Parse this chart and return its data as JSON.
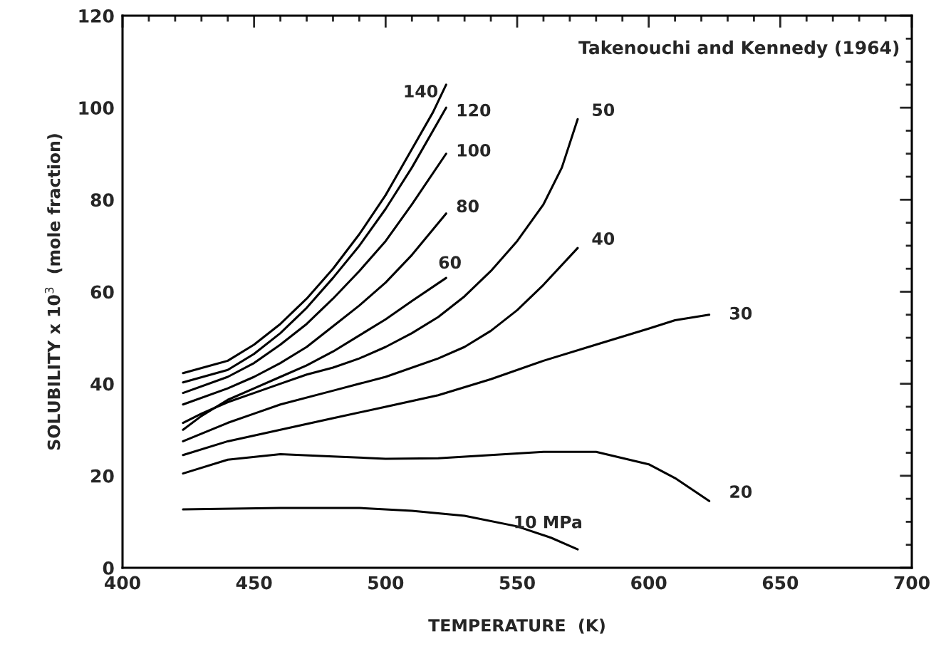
{
  "chart_data": {
    "type": "line",
    "xlabel": "TEMPERATURE  (K)",
    "ylabel": "SOLUBILITY x 10$^{3}$  (mole fraction)",
    "annotations": [
      "Takenouchi and Kennedy (1964)"
    ],
    "xlim": [
      400,
      700
    ],
    "ylim": [
      0,
      120
    ],
    "xticks": [
      400,
      {
        "value": 410,
        "label": null
      },
      {
        "value": 420,
        "label": null
      },
      {
        "value": 430,
        "label": null
      },
      {
        "value": 440,
        "label": null
      },
      450,
      {
        "value": 460,
        "label": null
      },
      {
        "value": 470,
        "label": null
      },
      {
        "value": 480,
        "label": null
      },
      {
        "value": 490,
        "label": null
      },
      500,
      {
        "value": 510,
        "label": null
      },
      {
        "value": 520,
        "label": null
      },
      {
        "value": 530,
        "label": null
      },
      {
        "value": 540,
        "label": null
      },
      550,
      {
        "value": 560,
        "label": null
      },
      {
        "value": 570,
        "label": null
      },
      {
        "value": 580,
        "label": null
      },
      {
        "value": 590,
        "label": null
      },
      600,
      {
        "value": 610,
        "label": null
      },
      {
        "value": 620,
        "label": null
      },
      {
        "value": 630,
        "label": null
      },
      {
        "value": 640,
        "label": null
      },
      650,
      {
        "value": 660,
        "label": null
      },
      {
        "value": 670,
        "label": null
      },
      {
        "value": 680,
        "label": null
      },
      {
        "value": 690,
        "label": null
      },
      700
    ],
    "yticks": [
      0,
      {
        "value": 5,
        "label": null
      },
      {
        "value": 10,
        "label": null
      },
      {
        "value": 15,
        "label": null
      },
      20,
      {
        "value": 25,
        "label": null
      },
      {
        "value": 30,
        "label": null
      },
      {
        "value": 35,
        "label": null
      },
      40,
      {
        "value": 45,
        "label": null
      },
      {
        "value": 50,
        "label": null
      },
      {
        "value": 55,
        "label": null
      },
      60,
      {
        "value": 65,
        "label": null
      },
      {
        "value": 70,
        "label": null
      },
      {
        "value": 75,
        "label": null
      },
      80,
      {
        "value": 85,
        "label": null
      },
      {
        "value": 90,
        "label": null
      },
      {
        "value": 95,
        "label": null
      },
      100,
      {
        "value": 105,
        "label": null
      },
      {
        "value": 110,
        "label": null
      },
      {
        "value": 115,
        "label": null
      },
      120
    ],
    "grid": false,
    "legend": false,
    "marker": "none",
    "line_style": "solid",
    "series": [
      {
        "name": "140",
        "color": "#000000",
        "x": [
          423,
          440,
          450,
          460,
          470,
          480,
          490,
          500,
          510,
          518,
          523
        ],
        "values": [
          42.3,
          45,
          48.5,
          53,
          58.5,
          65,
          72.5,
          81,
          91,
          99,
          105
        ]
      },
      {
        "name": "120",
        "color": "#000000",
        "x": [
          423,
          440,
          450,
          460,
          470,
          480,
          490,
          500,
          510,
          523
        ],
        "values": [
          40.3,
          43,
          46.5,
          51,
          56.5,
          63,
          70,
          78,
          87,
          100
        ]
      },
      {
        "name": "100",
        "color": "#000000",
        "x": [
          423,
          440,
          450,
          460,
          470,
          480,
          490,
          500,
          510,
          523
        ],
        "values": [
          38,
          41.5,
          44.5,
          48.5,
          53,
          58.5,
          64.5,
          71,
          79,
          90
        ]
      },
      {
        "name": "80",
        "color": "#000000",
        "x": [
          423,
          440,
          450,
          460,
          470,
          480,
          490,
          500,
          510,
          523
        ],
        "values": [
          35.5,
          39,
          41.5,
          44.5,
          48,
          52.5,
          57,
          62,
          68,
          77
        ]
      },
      {
        "name": "60",
        "color": "#000000",
        "x": [
          423,
          430,
          440,
          450,
          460,
          470,
          480,
          490,
          500,
          510,
          523
        ],
        "values": [
          30,
          33,
          36.5,
          39,
          41.5,
          44,
          47,
          50.5,
          54,
          58,
          63
        ]
      },
      {
        "name": "50",
        "color": "#000000",
        "x": [
          423,
          430,
          440,
          450,
          460,
          470,
          480,
          490,
          500,
          510,
          520,
          530,
          540,
          550,
          560,
          567,
          573
        ],
        "values": [
          31.5,
          33.5,
          36,
          38,
          40,
          42,
          43.5,
          45.5,
          48,
          51,
          54.5,
          59,
          64.5,
          71,
          79,
          87,
          97.5
        ]
      },
      {
        "name": "40",
        "color": "#000000",
        "x": [
          423,
          440,
          450,
          460,
          480,
          500,
          520,
          530,
          540,
          550,
          560,
          573
        ],
        "values": [
          27.5,
          31.5,
          33.5,
          35.5,
          38.5,
          41.5,
          45.5,
          48,
          51.5,
          56,
          61.5,
          69.5
        ]
      },
      {
        "name": "30",
        "color": "#000000",
        "x": [
          423,
          440,
          460,
          480,
          500,
          520,
          540,
          560,
          580,
          600,
          610,
          623
        ],
        "values": [
          24.5,
          27.5,
          30,
          32.5,
          35,
          37.5,
          41,
          45,
          48.5,
          52,
          53.8,
          55
        ]
      },
      {
        "name": "20",
        "color": "#000000",
        "x": [
          423,
          440,
          460,
          480,
          500,
          520,
          540,
          560,
          580,
          600,
          610,
          623
        ],
        "values": [
          20.5,
          23.5,
          24.7,
          24.2,
          23.7,
          23.8,
          24.5,
          25.2,
          25.2,
          22.5,
          19.5,
          14.5
        ]
      },
      {
        "name": "10 MPa",
        "color": "#000000",
        "x": [
          423,
          460,
          490,
          510,
          530,
          550,
          563,
          573
        ],
        "values": [
          12.7,
          13,
          13,
          12.4,
          11.3,
          9,
          6.5,
          4
        ]
      }
    ]
  }
}
